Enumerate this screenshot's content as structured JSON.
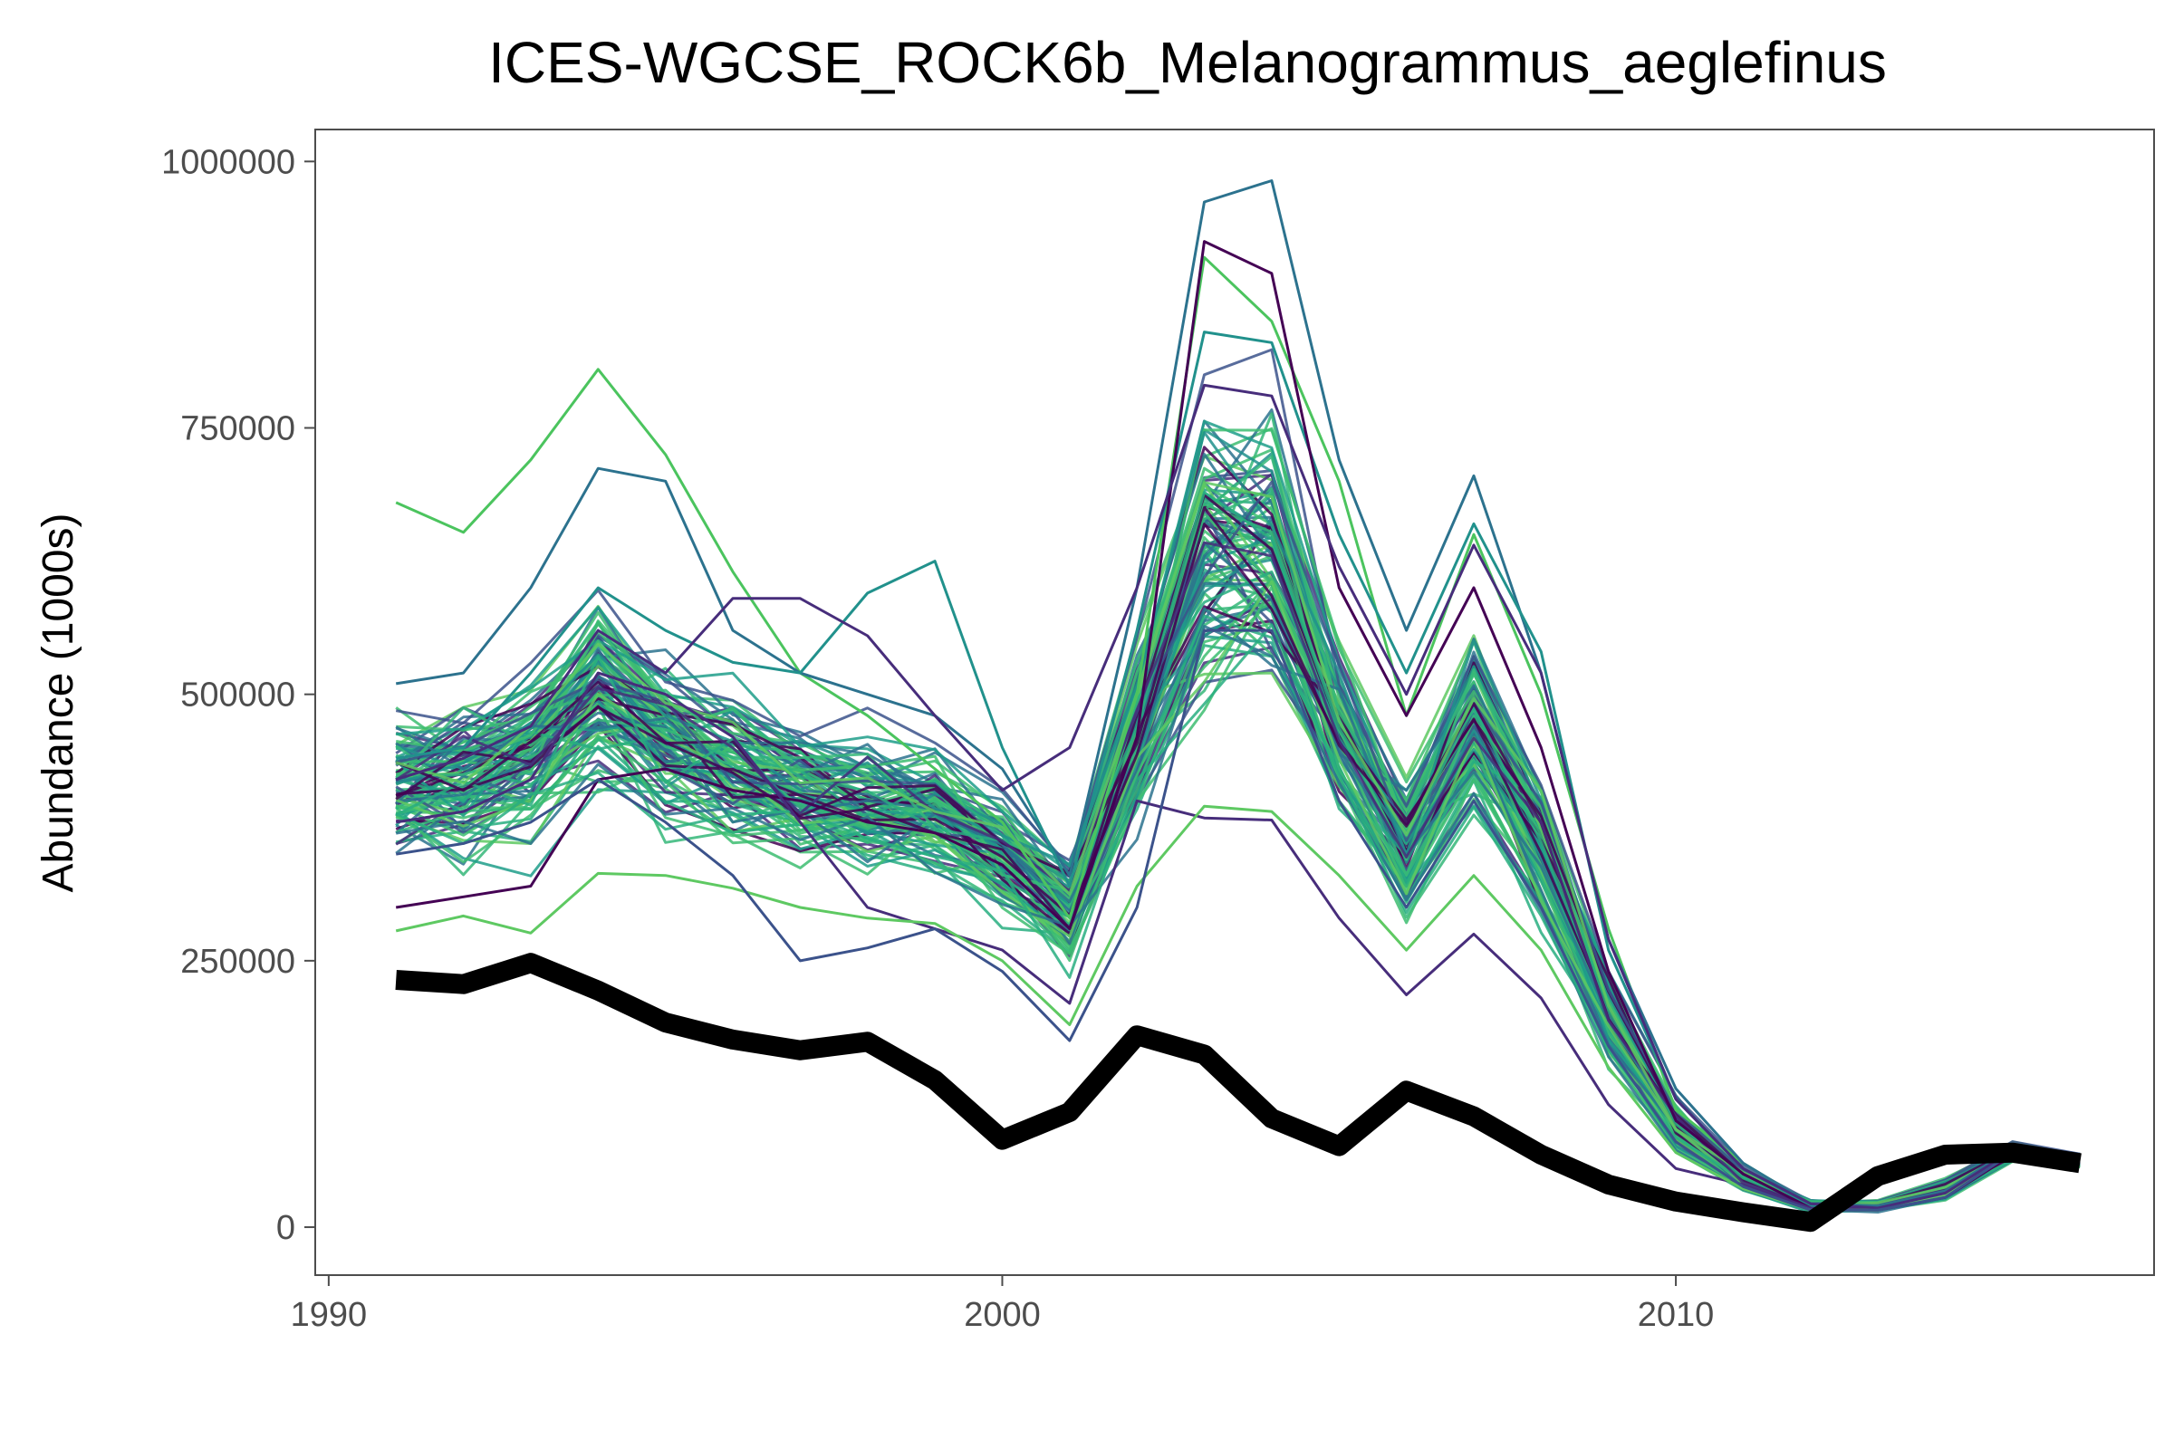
{
  "chart_data": {
    "type": "line",
    "title": "ICES-WGCSE_ROCK6b_Melanogrammus_aeglefinus",
    "xlabel": "",
    "ylabel": "Abundance (1000s)",
    "xlim": [
      1989.8,
      2017.1
    ],
    "ylim": [
      -45000,
      1030000
    ],
    "x_ticks": [
      1990,
      2000,
      2010
    ],
    "x_tick_labels": [
      "1990",
      "2000",
      "2010"
    ],
    "y_ticks": [
      0,
      250000,
      500000,
      750000,
      1000000
    ],
    "y_tick_labels": [
      "0",
      "250000",
      "500000",
      "750000",
      "1000000"
    ],
    "grid": false,
    "legend": "none",
    "colors": {
      "reference": "#000000",
      "palette": [
        "#440154",
        "#472d7b",
        "#3b528b",
        "#2c728e",
        "#21918c",
        "#28ae80",
        "#5ec962",
        "#3dbd71",
        "#1f9e89",
        "#35b779"
      ],
      "axis": "#4d4d4d"
    },
    "x": [
      1991,
      1992,
      1993,
      1994,
      1995,
      1996,
      1997,
      1998,
      1999,
      2000,
      2001,
      2002,
      2003,
      2004,
      2005,
      2006,
      2007,
      2008,
      2009,
      2010,
      2011,
      2012,
      2013,
      2014,
      2015,
      2016
    ],
    "reference_series": {
      "values": [
        232000,
        228000,
        248000,
        222000,
        192000,
        176000,
        166000,
        174000,
        138000,
        82000,
        108000,
        180000,
        162000,
        102000,
        76000,
        128000,
        104000,
        68000,
        40000,
        24000,
        14000,
        5000,
        48000,
        68000,
        70000,
        60000
      ]
    },
    "ensemble": {
      "count": 100,
      "mean": [
        410000,
        418000,
        440000,
        500000,
        455000,
        430000,
        405000,
        395000,
        385000,
        350000,
        300000,
        465000,
        630000,
        630000,
        460000,
        350000,
        470000,
        355000,
        200000,
        95000,
        45000,
        20000,
        20000,
        35000,
        70000,
        62000
      ],
      "spread": [
        60000,
        62000,
        65000,
        75000,
        65000,
        62000,
        58000,
        56000,
        55000,
        48000,
        42000,
        70000,
        110000,
        110000,
        70000,
        55000,
        70000,
        55000,
        35000,
        18000,
        9000,
        4000,
        4000,
        8000,
        8000,
        6000
      ],
      "highlighted": [
        {
          "color": "#4bc45e",
          "values": [
            680000,
            652000,
            720000,
            805000,
            725000,
            615000,
            520000,
            480000,
            430000,
            380000,
            290000,
            500000,
            910000,
            850000,
            700000,
            480000,
            650000,
            500000,
            280000,
            110000,
            60000,
            22000,
            20000,
            30000,
            72000,
            62000
          ]
        },
        {
          "color": "#2c728e",
          "values": [
            510000,
            520000,
            600000,
            712000,
            700000,
            560000,
            520000,
            500000,
            480000,
            430000,
            330000,
            600000,
            962000,
            982000,
            720000,
            560000,
            705000,
            520000,
            270000,
            130000,
            60000,
            22000,
            20000,
            34000,
            74000,
            63000
          ]
        },
        {
          "color": "#21918c",
          "values": [
            440000,
            450000,
            520000,
            600000,
            560000,
            530000,
            520000,
            595000,
            625000,
            450000,
            320000,
            560000,
            840000,
            830000,
            650000,
            520000,
            660000,
            540000,
            260000,
            120000,
            55000,
            20000,
            18000,
            32000,
            70000,
            60000
          ]
        },
        {
          "color": "#440154",
          "values": [
            300000,
            310000,
            320000,
            420000,
            430000,
            410000,
            400000,
            380000,
            370000,
            340000,
            280000,
            460000,
            925000,
            895000,
            600000,
            480000,
            600000,
            450000,
            240000,
            100000,
            50000,
            18000,
            16000,
            28000,
            68000,
            60000
          ]
        },
        {
          "color": "#472d7b",
          "values": [
            380000,
            390000,
            420000,
            520000,
            500000,
            460000,
            380000,
            300000,
            280000,
            260000,
            210000,
            400000,
            384000,
            382000,
            290000,
            218000,
            275000,
            215000,
            115000,
            55000,
            40000,
            18000,
            17000,
            30000,
            70000,
            61000
          ]
        },
        {
          "color": "#5ec962",
          "values": [
            278000,
            292000,
            276000,
            332000,
            330000,
            318000,
            300000,
            290000,
            285000,
            250000,
            190000,
            320000,
            395000,
            390000,
            330000,
            260000,
            330000,
            260000,
            150000,
            70000,
            36000,
            16000,
            16000,
            30000,
            72000,
            62000
          ]
        },
        {
          "color": "#472d7b",
          "values": [
            420000,
            440000,
            470000,
            560000,
            520000,
            590000,
            590000,
            555000,
            480000,
            410000,
            450000,
            600000,
            790000,
            780000,
            620000,
            500000,
            640000,
            520000,
            270000,
            120000,
            55000,
            22000,
            18000,
            32000,
            72000,
            62000
          ]
        },
        {
          "color": "#3b528b",
          "values": [
            350000,
            360000,
            380000,
            420000,
            380000,
            330000,
            250000,
            262000,
            280000,
            240000,
            175000,
            300000,
            560000,
            560000,
            400000,
            300000,
            400000,
            300000,
            170000,
            80000,
            38000,
            16000,
            16000,
            28000,
            70000,
            60000
          ]
        }
      ]
    }
  }
}
